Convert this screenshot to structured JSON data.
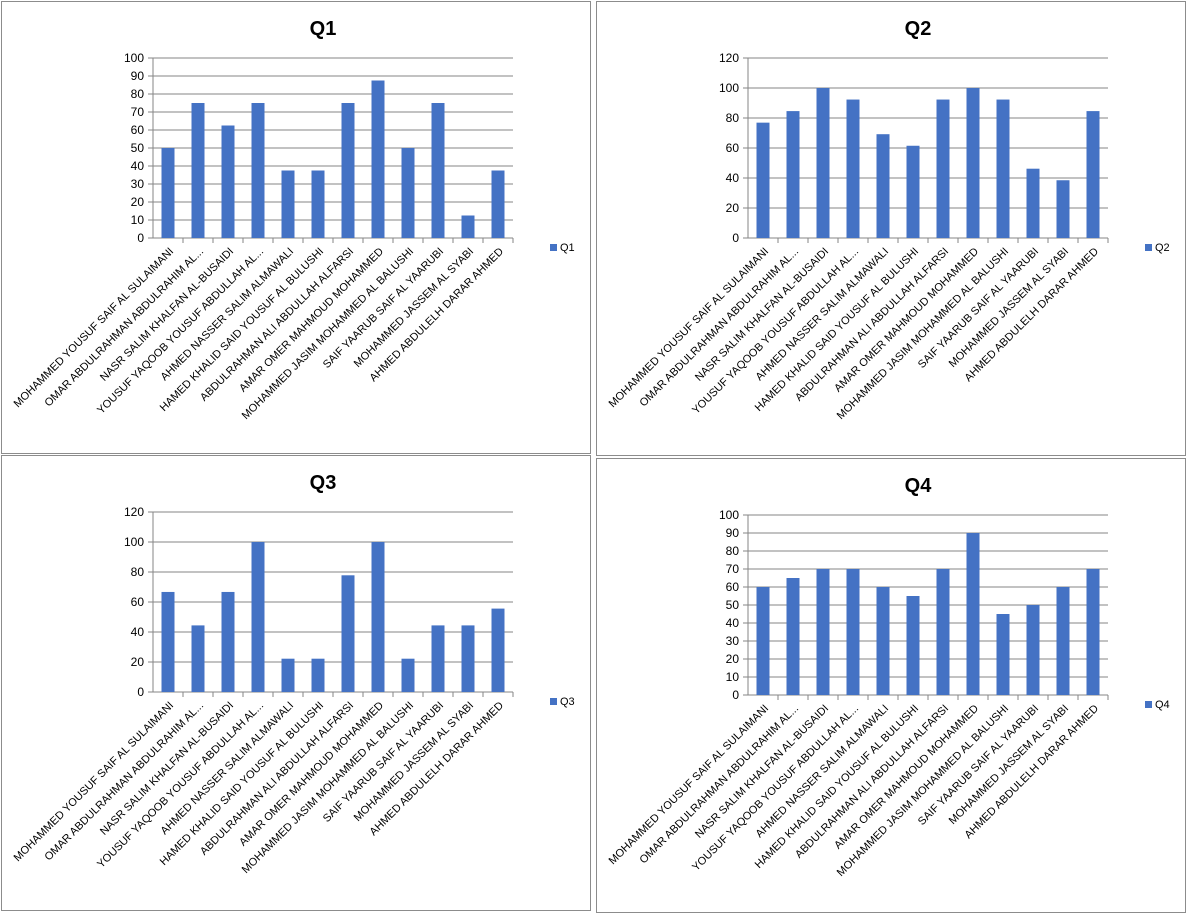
{
  "chart_data": [
    {
      "type": "bar",
      "title": "Q1",
      "legend": "Q1",
      "legend_position": "right",
      "ylim": [
        0,
        100
      ],
      "ystep": 10,
      "grid": true,
      "categories": [
        "MOHAMMED YOUSUF SAIF  AL SULAIMANI",
        "OMAR ABDULRAHMAN ABDULRAHIM AL...",
        "NASR SALIM KHALFAN AL-BUSAIDI",
        "YOUSUF YAQOOB YOUSUF ABDULLAH AL...",
        "AHMED NASSER SALIM ALMAWALI",
        "HAMED KHALID SAID YOUSUF AL BULUSHI",
        "ABDULRAHMAN ALI ABDULLAH  ALFARSI",
        "AMAR OMER MAHMOUD MOHAMMED",
        "MOHAMMED JASIM MOHAMMED AL BALUSHI",
        "SAIF YAARUB SAIF AL YAARUBI",
        "MOHAMMED JASSEM AL SYABI",
        "AHMED ABDULELH DARAR AHMED"
      ],
      "values": [
        50,
        75,
        62.5,
        75,
        37.5,
        37.5,
        75,
        87.5,
        50,
        75,
        12.5,
        37.5
      ]
    },
    {
      "type": "bar",
      "title": "Q2",
      "legend": "Q2",
      "legend_position": "right",
      "ylim": [
        0,
        120
      ],
      "ystep": 20,
      "grid": true,
      "categories": [
        "MOHAMMED YOUSUF SAIF  AL SULAIMANI",
        "OMAR ABDULRAHMAN ABDULRAHIM AL...",
        "NASR SALIM KHALFAN AL-BUSAIDI",
        "YOUSUF YAQOOB YOUSUF ABDULLAH AL...",
        "AHMED NASSER SALIM ALMAWALI",
        "HAMED KHALID SAID YOUSUF AL BULUSHI",
        "ABDULRAHMAN ALI ABDULLAH  ALFARSI",
        "AMAR OMER MAHMOUD MOHAMMED",
        "MOHAMMED JASIM MOHAMMED AL BALUSHI",
        "SAIF YAARUB SAIF AL YAARUBI",
        "MOHAMMED JASSEM AL SYABI",
        "AHMED ABDULELH DARAR AHMED"
      ],
      "values": [
        76.9,
        84.6,
        100,
        92.3,
        69.2,
        61.5,
        92.3,
        100,
        92.3,
        46.2,
        38.5,
        84.6
      ]
    },
    {
      "type": "bar",
      "title": "Q3",
      "legend": "Q3",
      "legend_position": "right",
      "ylim": [
        0,
        120
      ],
      "ystep": 20,
      "grid": true,
      "categories": [
        "MOHAMMED YOUSUF SAIF  AL SULAIMANI",
        "OMAR ABDULRAHMAN ABDULRAHIM AL...",
        "NASR SALIM KHALFAN AL-BUSAIDI",
        "YOUSUF YAQOOB YOUSUF ABDULLAH AL...",
        "AHMED NASSER SALIM ALMAWALI",
        "HAMED KHALID SAID YOUSUF AL BULUSHI",
        "ABDULRAHMAN ALI ABDULLAH  ALFARSI",
        "AMAR OMER MAHMOUD MOHAMMED",
        "MOHAMMED JASIM MOHAMMED AL BALUSHI",
        "SAIF YAARUB SAIF AL YAARUBI",
        "MOHAMMED JASSEM AL SYABI",
        "AHMED ABDULELH DARAR AHMED"
      ],
      "values": [
        66.7,
        44.4,
        66.7,
        100,
        22.2,
        22.2,
        77.8,
        100,
        22.2,
        44.4,
        44.4,
        55.6
      ]
    },
    {
      "type": "bar",
      "title": "Q4",
      "legend": "Q4",
      "legend_position": "right",
      "ylim": [
        0,
        100
      ],
      "ystep": 10,
      "grid": true,
      "categories": [
        "MOHAMMED YOUSUF SAIF  AL SULAIMANI",
        "OMAR ABDULRAHMAN ABDULRAHIM AL...",
        "NASR SALIM KHALFAN AL-BUSAIDI",
        "YOUSUF YAQOOB YOUSUF ABDULLAH AL...",
        "AHMED NASSER SALIM ALMAWALI",
        "HAMED KHALID SAID YOUSUF AL BULUSHI",
        "ABDULRAHMAN ALI ABDULLAH  ALFARSI",
        "AMAR OMER MAHMOUD MOHAMMED",
        "MOHAMMED JASIM MOHAMMED AL BALUSHI",
        "SAIF YAARUB SAIF AL YAARUBI",
        "MOHAMMED JASSEM AL SYABI",
        "AHMED ABDULELH DARAR AHMED"
      ],
      "values": [
        60,
        65,
        70,
        70,
        60,
        55,
        70,
        90,
        45,
        50,
        60,
        70
      ]
    }
  ],
  "colors": {
    "bar": "#4472c4",
    "grid": "#868686"
  }
}
